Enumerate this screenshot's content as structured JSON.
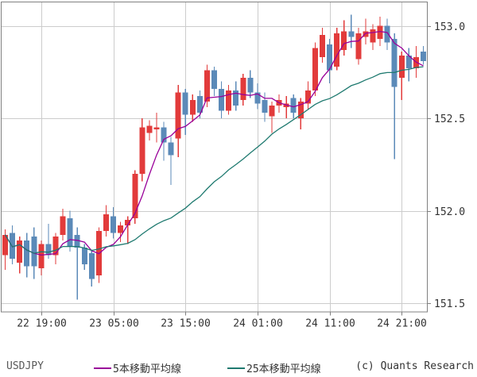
{
  "chart_data": {
    "type": "candlestick",
    "title": "",
    "symbol": "USDJPY",
    "ohlc_format": [
      "open",
      "high",
      "low",
      "close"
    ],
    "candles": [
      [
        151.76,
        151.9,
        151.68,
        151.87
      ],
      [
        151.88,
        151.92,
        151.71,
        151.74
      ],
      [
        151.72,
        151.86,
        151.66,
        151.84
      ],
      [
        151.84,
        151.88,
        151.64,
        151.7
      ],
      [
        151.86,
        151.91,
        151.63,
        151.7
      ],
      [
        151.69,
        151.84,
        151.65,
        151.82
      ],
      [
        151.82,
        151.93,
        151.74,
        151.76
      ],
      [
        151.76,
        151.88,
        151.71,
        151.86
      ],
      [
        151.87,
        152.01,
        151.84,
        151.97
      ],
      [
        151.96,
        152.0,
        151.78,
        151.81
      ],
      [
        151.87,
        151.91,
        151.52,
        151.8
      ],
      [
        151.8,
        151.82,
        151.68,
        151.71
      ],
      [
        151.77,
        151.79,
        151.59,
        151.63
      ],
      [
        151.65,
        151.91,
        151.61,
        151.89
      ],
      [
        151.89,
        152.03,
        151.86,
        151.98
      ],
      [
        151.97,
        152.02,
        151.85,
        151.88
      ],
      [
        151.88,
        151.94,
        151.83,
        151.92
      ],
      [
        151.92,
        151.97,
        151.82,
        151.95
      ],
      [
        151.96,
        152.22,
        151.93,
        152.2
      ],
      [
        152.2,
        152.5,
        152.16,
        152.45
      ],
      [
        152.42,
        152.49,
        152.38,
        152.46
      ],
      [
        152.44,
        152.53,
        152.37,
        152.45
      ],
      [
        152.45,
        152.48,
        152.27,
        152.37
      ],
      [
        152.37,
        152.4,
        152.14,
        152.3
      ],
      [
        152.39,
        152.68,
        152.29,
        152.64
      ],
      [
        152.64,
        152.66,
        152.41,
        152.52
      ],
      [
        152.52,
        152.63,
        152.48,
        152.6
      ],
      [
        152.62,
        152.65,
        152.5,
        152.53
      ],
      [
        152.59,
        152.79,
        152.56,
        152.76
      ],
      [
        152.76,
        152.78,
        152.62,
        152.66
      ],
      [
        152.66,
        152.7,
        152.5,
        152.54
      ],
      [
        152.54,
        152.68,
        152.52,
        152.65
      ],
      [
        152.65,
        152.7,
        152.54,
        152.57
      ],
      [
        152.6,
        152.74,
        152.57,
        152.72
      ],
      [
        152.72,
        152.76,
        152.61,
        152.64
      ],
      [
        152.64,
        152.69,
        152.55,
        152.58
      ],
      [
        152.6,
        152.64,
        152.48,
        152.53
      ],
      [
        152.51,
        152.59,
        152.42,
        152.57
      ],
      [
        152.57,
        152.63,
        152.53,
        152.6
      ],
      [
        152.56,
        152.62,
        152.5,
        152.58
      ],
      [
        152.61,
        152.63,
        152.5,
        152.53
      ],
      [
        152.5,
        152.61,
        152.44,
        152.59
      ],
      [
        152.58,
        152.7,
        152.55,
        152.65
      ],
      [
        152.65,
        152.91,
        152.62,
        152.88
      ],
      [
        152.83,
        152.99,
        152.8,
        152.95
      ],
      [
        152.9,
        152.93,
        152.69,
        152.76
      ],
      [
        152.78,
        152.99,
        152.76,
        152.96
      ],
      [
        152.87,
        153.03,
        152.84,
        152.97
      ],
      [
        152.97,
        153.06,
        152.88,
        152.94
      ],
      [
        152.82,
        152.99,
        152.79,
        152.96
      ],
      [
        152.94,
        153.04,
        152.9,
        152.97
      ],
      [
        152.91,
        153.01,
        152.87,
        152.98
      ],
      [
        152.93,
        153.05,
        152.89,
        153.0
      ],
      [
        153.0,
        153.04,
        152.87,
        152.91
      ],
      [
        152.93,
        152.96,
        152.28,
        152.67
      ],
      [
        152.72,
        152.86,
        152.6,
        152.84
      ],
      [
        152.84,
        152.88,
        152.7,
        152.77
      ],
      [
        152.77,
        152.89,
        152.72,
        152.83
      ],
      [
        152.86,
        152.89,
        152.79,
        152.81
      ]
    ],
    "xticks": [
      {
        "index": 5,
        "label": "22 19:00"
      },
      {
        "index": 15,
        "label": "23 05:00"
      },
      {
        "index": 25,
        "label": "23 15:00"
      },
      {
        "index": 35,
        "label": "24 01:00"
      },
      {
        "index": 45,
        "label": "24 11:00"
      },
      {
        "index": 55,
        "label": "24 21:00"
      }
    ],
    "yticks": [
      {
        "value": 153.0,
        "label": "153.0"
      },
      {
        "value": 152.5,
        "label": "152.5"
      },
      {
        "value": 152.0,
        "label": "152.0"
      },
      {
        "value": 151.5,
        "label": "151.5"
      }
    ],
    "ylim": [
      151.455,
      153.127
    ],
    "grid": true,
    "legend_position": "bottom",
    "series": [
      {
        "name": "5本移動平均線",
        "type": "sma",
        "window": 5,
        "color": "#990099"
      },
      {
        "name": "25本移動平均線",
        "type": "sma",
        "window": 25,
        "color": "#1f7a70"
      }
    ],
    "colors": {
      "up": "#e23b3b",
      "down": "#5b8ab8",
      "grid": "#cccccc",
      "frame": "#808080",
      "tick_text": "#333333"
    }
  },
  "footer": {
    "symbol": "USDJPY",
    "legend": [
      {
        "label": "5本移動平均線",
        "color": "#990099"
      },
      {
        "label": "25本移動平均線",
        "color": "#1f7a70"
      }
    ],
    "copyright": "(c) Quants Research"
  }
}
